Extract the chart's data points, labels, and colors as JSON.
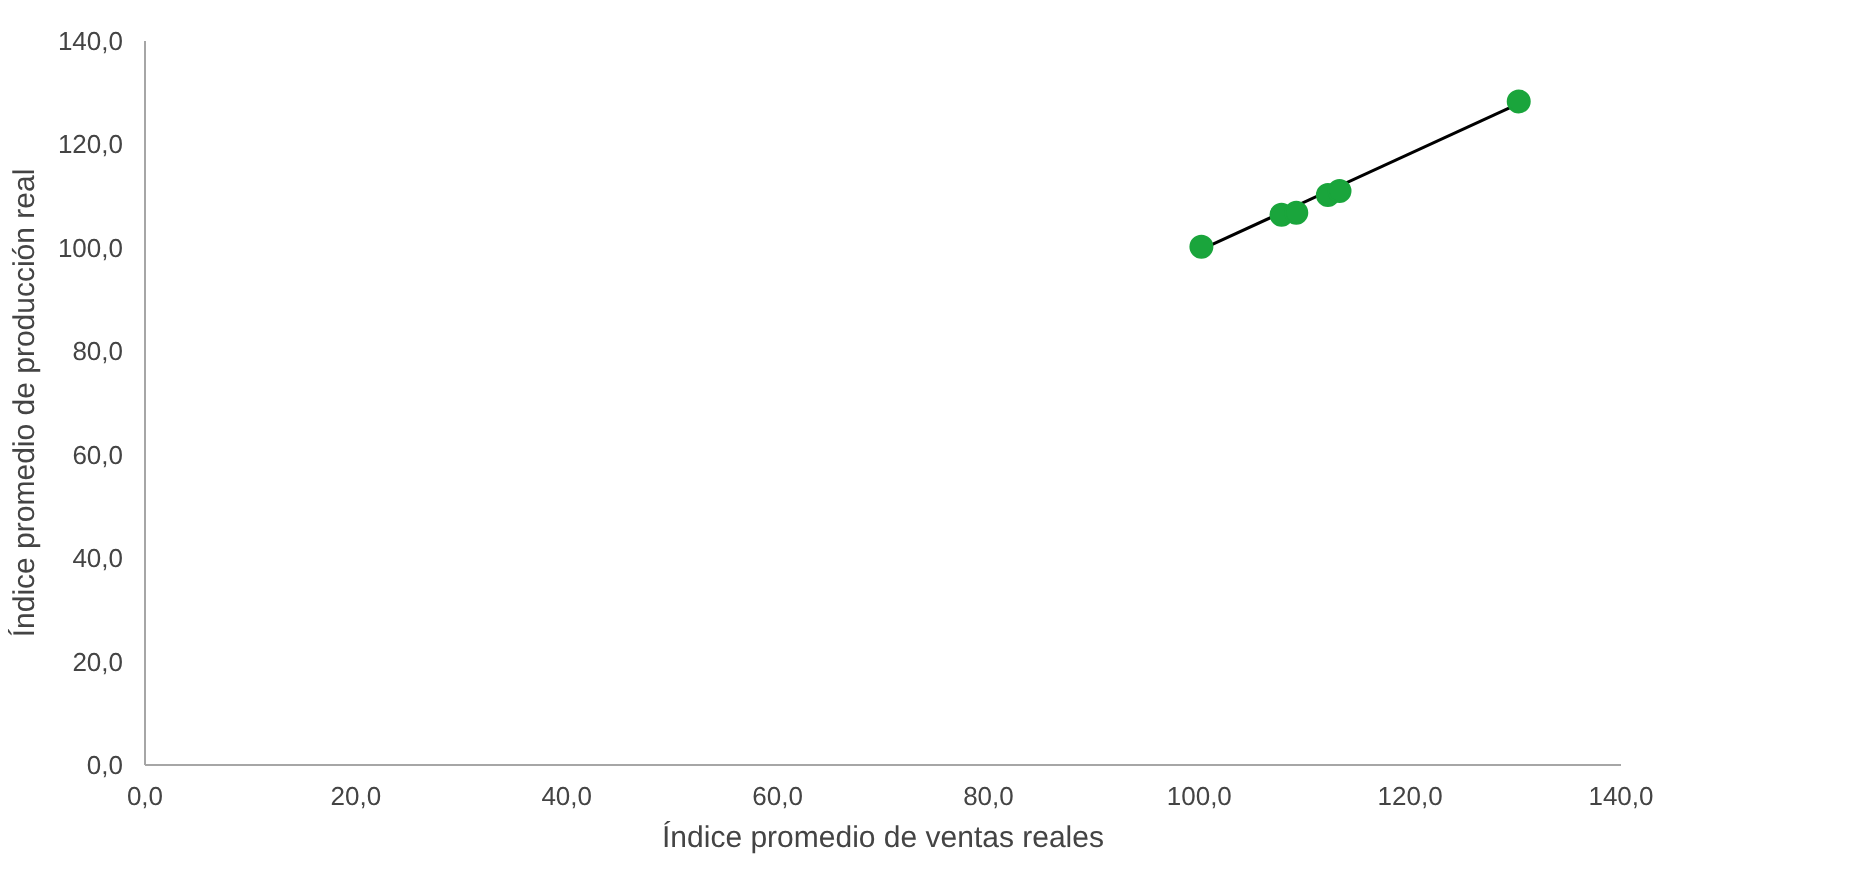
{
  "chart_data": {
    "type": "scatter",
    "xlabel": "Índice promedio de ventas reales",
    "ylabel": "Índice promedio de producción real",
    "series": [
      {
        "color": "#1aa53c",
        "x": [
          100.2,
          107.8,
          109.2,
          112.2,
          113.3,
          130.3
        ],
        "values": [
          100.2,
          106.4,
          106.8,
          110.2,
          111.0,
          128.3
        ],
        "marker": "circle"
      },
      {
        "type": "line",
        "color": "#000000",
        "x": [
          100.0,
          130.3
        ],
        "values": [
          99.5,
          127.9
        ],
        "marker": "none"
      }
    ],
    "xlim": [
      0,
      140
    ],
    "ylim": [
      0,
      140
    ],
    "xticks": [
      {
        "value": 0,
        "label": "0,0"
      },
      {
        "value": 20,
        "label": "20,0"
      },
      {
        "value": 40,
        "label": "40,0"
      },
      {
        "value": 60,
        "label": "60,0"
      },
      {
        "value": 80,
        "label": "80,0"
      },
      {
        "value": 100,
        "label": "100,0"
      },
      {
        "value": 120,
        "label": "120,0"
      },
      {
        "value": 140,
        "label": "140,0"
      }
    ],
    "yticks": [
      {
        "value": 0,
        "label": "0,0"
      },
      {
        "value": 20,
        "label": "20,0"
      },
      {
        "value": 40,
        "label": "40,0"
      },
      {
        "value": 60,
        "label": "60,0"
      },
      {
        "value": 80,
        "label": "80,0"
      },
      {
        "value": 100,
        "label": "100,0"
      },
      {
        "value": 120,
        "label": "120,0"
      },
      {
        "value": 140,
        "label": "140,0"
      }
    ],
    "grid": false
  }
}
